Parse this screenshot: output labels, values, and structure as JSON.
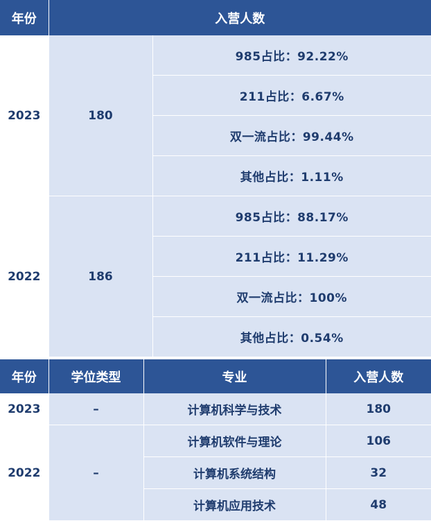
{
  "table1": {
    "headers": {
      "year": "年份",
      "enrollment": "入营人数"
    },
    "groups": [
      {
        "year": "2023",
        "count": "180",
        "stats": [
          "985占比：92.22%",
          "211占比：6.67%",
          "双一流占比：99.44%",
          "其他占比：1.11%"
        ]
      },
      {
        "year": "2022",
        "count": "186",
        "stats": [
          "985占比：88.17%",
          "211占比：11.29%",
          "双一流占比：100%",
          "其他占比：0.54%"
        ]
      }
    ]
  },
  "table2": {
    "headers": {
      "year": "年份",
      "degree_type": "学位类型",
      "major": "专业",
      "enrollment": "入营人数"
    },
    "groups": [
      {
        "year": "2023",
        "degree_type": "–",
        "rows": [
          {
            "major": "计算机科学与技术",
            "count": "180"
          }
        ]
      },
      {
        "year": "2022",
        "degree_type": "–",
        "rows": [
          {
            "major": "计算机软件与理论",
            "count": "106"
          },
          {
            "major": "计算机系统结构",
            "count": "32"
          },
          {
            "major": "计算机应用技术",
            "count": "48"
          }
        ]
      }
    ]
  }
}
